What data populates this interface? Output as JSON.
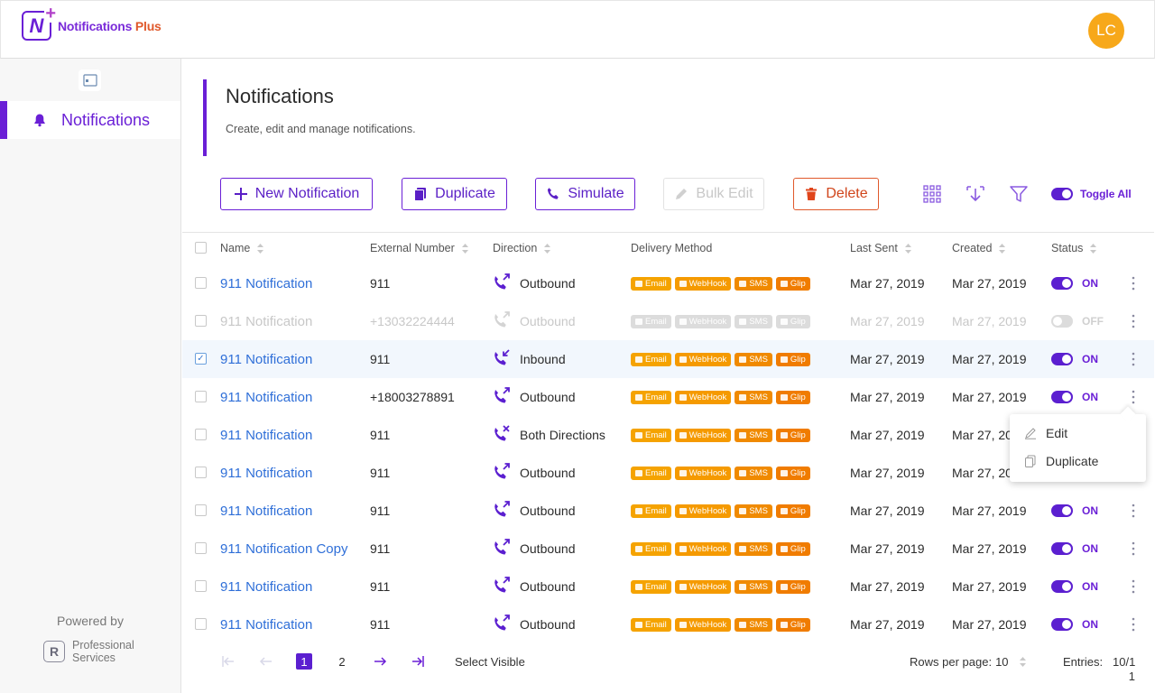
{
  "app": {
    "name_main": "Notifications",
    "name_plus": " Plus",
    "logo_letter": "N",
    "user_initials": "LC"
  },
  "sidebar": {
    "items": [
      {
        "label": "Notifications",
        "icon": "bell-icon"
      }
    ],
    "powered_by": "Powered by",
    "brand_line1": "Professional",
    "brand_line2": "Services"
  },
  "page": {
    "title": "Notifications",
    "subtitle": "Create, edit and manage notifications."
  },
  "toolbar": {
    "new_label": "New Notification",
    "duplicate_label": "Duplicate",
    "simulate_label": "Simulate",
    "bulk_edit_label": "Bulk Edit",
    "delete_label": "Delete",
    "toggle_all_label": "Toggle All"
  },
  "table": {
    "headers": {
      "name": "Name",
      "external_number": "External Number",
      "direction": "Direction",
      "delivery_method": "Delivery Method",
      "last_sent": "Last Sent",
      "created": "Created",
      "status": "Status"
    },
    "badge_labels": [
      "Email",
      "WebHook",
      "SMS",
      "Glip"
    ],
    "rows": [
      {
        "name": "911 Notification",
        "external_number": "911",
        "direction": "Outbound",
        "last_sent": "Mar 27, 2019",
        "created": "Mar 27, 2019",
        "status": "ON"
      },
      {
        "name": "911 Notification",
        "external_number": "+13032224444",
        "direction": "Outbound",
        "last_sent": "Mar 27, 2019",
        "created": "Mar 27, 2019",
        "status": "OFF"
      },
      {
        "name": "911 Notification",
        "external_number": "911",
        "direction": "Inbound",
        "last_sent": "Mar 27, 2019",
        "created": "Mar 27, 2019",
        "status": "ON"
      },
      {
        "name": "911 Notification",
        "external_number": "+18003278891",
        "direction": "Outbound",
        "last_sent": "Mar 27, 2019",
        "created": "Mar 27, 2019",
        "status": "ON"
      },
      {
        "name": "911 Notification",
        "external_number": "911",
        "direction": "Both Directions",
        "last_sent": "Mar 27, 2019",
        "created": "Mar 27, 20",
        "status": ""
      },
      {
        "name": "911 Notification",
        "external_number": "911",
        "direction": "Outbound",
        "last_sent": "Mar 27, 2019",
        "created": "Mar 27, 20",
        "status": ""
      },
      {
        "name": "911 Notification",
        "external_number": "911",
        "direction": "Outbound",
        "last_sent": "Mar 27, 2019",
        "created": "Mar 27, 2019",
        "status": "ON"
      },
      {
        "name": "911 Notification Copy",
        "external_number": "911",
        "direction": "Outbound",
        "last_sent": "Mar 27, 2019",
        "created": "Mar 27, 2019",
        "status": "ON"
      },
      {
        "name": "911 Notification",
        "external_number": "911",
        "direction": "Outbound",
        "last_sent": "Mar 27, 2019",
        "created": "Mar 27, 2019",
        "status": "ON"
      },
      {
        "name": "911 Notification",
        "external_number": "911",
        "direction": "Outbound",
        "last_sent": "Mar 27, 2019",
        "created": "Mar 27, 2019",
        "status": "ON"
      }
    ]
  },
  "context_menu": {
    "edit_label": "Edit",
    "duplicate_label": "Duplicate"
  },
  "footer": {
    "page1": "1",
    "page2": "2",
    "select_visible": "Select Visible",
    "rows_per_page_label": "Rows per page:",
    "rows_per_page_value": "10",
    "entries_label": "Entries:",
    "entries_value_line1": "10/1",
    "entries_value_line2": "1"
  },
  "colors": {
    "brand": "#6a1fd6",
    "link": "#2f6fd8",
    "badge": "#f5a300",
    "danger": "#e0592b",
    "avatar": "#f7a81a"
  }
}
